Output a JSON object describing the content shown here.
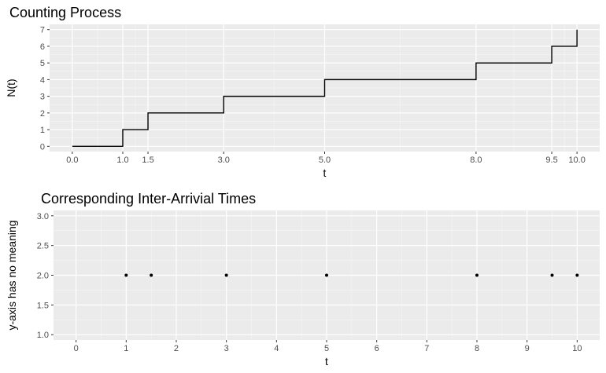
{
  "chart_data": [
    {
      "type": "line",
      "subtype": "step",
      "title": "Counting Process",
      "xlabel": "t",
      "ylabel": "N(t)",
      "xlim": [
        0,
        10
      ],
      "ylim": [
        0,
        7
      ],
      "x_ticks": [
        0.0,
        1.0,
        1.5,
        3.0,
        5.0,
        8.0,
        9.5,
        10.0
      ],
      "x_tick_labels": [
        "0.0",
        "1.0",
        "1.5",
        "3.0",
        "5.0",
        "8.0",
        "9.5",
        "10.0"
      ],
      "y_ticks": [
        0,
        1,
        2,
        3,
        4,
        5,
        6,
        7
      ],
      "y_tick_labels": [
        "0",
        "1",
        "2",
        "3",
        "4",
        "5",
        "6",
        "7"
      ],
      "grid": true,
      "series": [
        {
          "x": [
            0.0,
            1.0,
            1.5,
            3.0,
            5.0,
            8.0,
            9.5,
            10.0
          ],
          "y": [
            0,
            1,
            2,
            3,
            4,
            5,
            6,
            7
          ]
        }
      ],
      "colors": {
        "panel": "#ebebeb",
        "grid_major": "#ffffff",
        "line": "#000000"
      }
    },
    {
      "type": "scatter",
      "title": "Corresponding Inter-Arrivial Times",
      "xlabel": "t",
      "ylabel": "y-axis has no meaning",
      "xlim": [
        0,
        10
      ],
      "ylim": [
        1.0,
        3.0
      ],
      "x_ticks": [
        0,
        1,
        2,
        3,
        4,
        5,
        6,
        7,
        8,
        9,
        10
      ],
      "x_tick_labels": [
        "0",
        "1",
        "2",
        "3",
        "4",
        "5",
        "6",
        "7",
        "8",
        "9",
        "10"
      ],
      "y_ticks": [
        1.0,
        1.5,
        2.0,
        2.5,
        3.0
      ],
      "y_tick_labels": [
        "1.0",
        "1.5",
        "2.0",
        "2.5",
        "3.0"
      ],
      "grid": true,
      "series": [
        {
          "x": [
            1.0,
            1.5,
            3.0,
            5.0,
            8.0,
            9.5,
            10.0
          ],
          "y": [
            2,
            2,
            2,
            2,
            2,
            2,
            2
          ]
        }
      ],
      "colors": {
        "panel": "#ebebeb",
        "grid_major": "#ffffff",
        "point": "#000000"
      }
    }
  ]
}
